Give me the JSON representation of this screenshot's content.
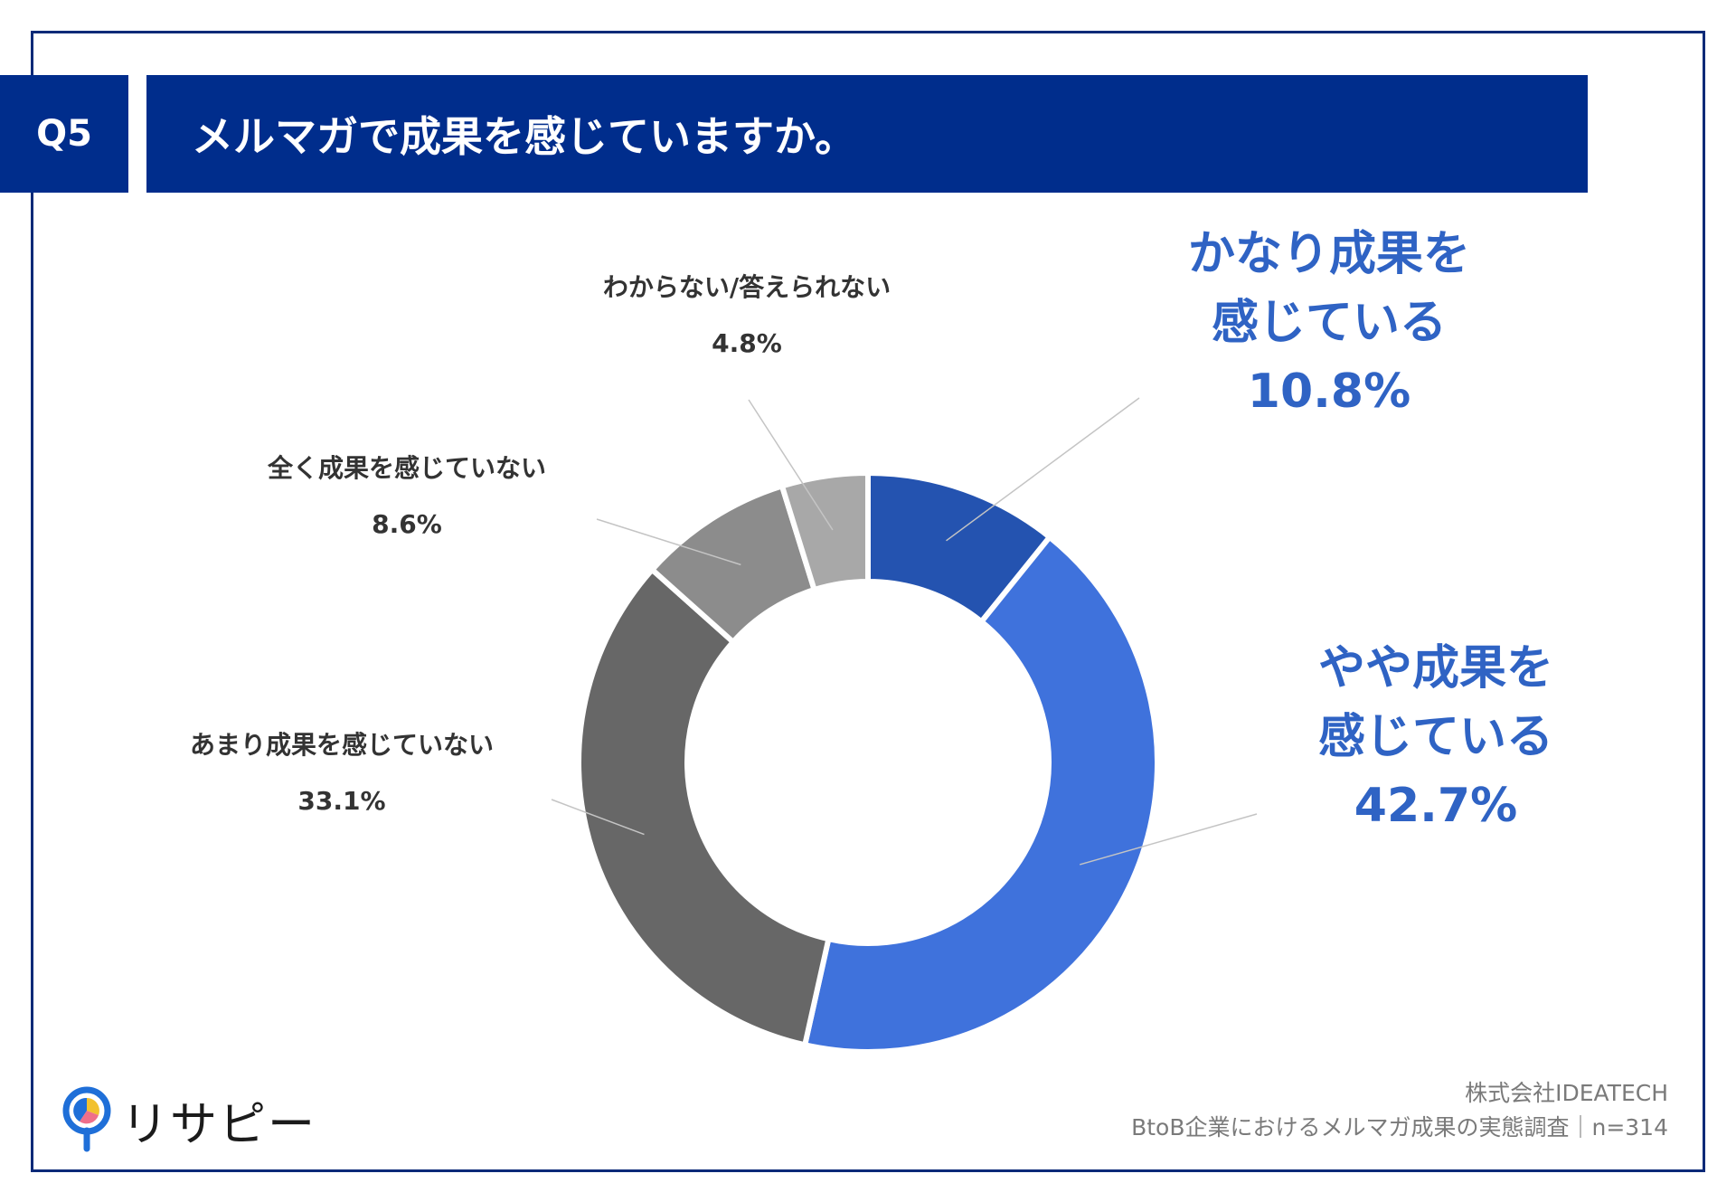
{
  "header": {
    "badge": "Q5",
    "question": "メルマガで成果を感じていますか。"
  },
  "chart_data": {
    "type": "donut",
    "title": "メルマガで成果を感じていますか。",
    "slices": [
      {
        "label_lines": [
          "かなり成果を",
          "感じている"
        ],
        "value": 10.8,
        "value_label": "10.8%",
        "color": "#2453b0",
        "label_color": "#2f63c4"
      },
      {
        "label_lines": [
          "やや成果を",
          "感じている"
        ],
        "value": 42.7,
        "value_label": "42.7%",
        "color": "#3f72dc",
        "label_color": "#2f63c4"
      },
      {
        "label_lines": [
          "あまり成果を感じていない"
        ],
        "value": 33.1,
        "value_label": "33.1%",
        "color": "#676767",
        "label_color": "#333333"
      },
      {
        "label_lines": [
          "全く成果を感じていない"
        ],
        "value": 8.6,
        "value_label": "8.6%",
        "color": "#8c8c8c",
        "label_color": "#333333"
      },
      {
        "label_lines": [
          "わからない/答えられない"
        ],
        "value": 4.8,
        "value_label": "4.8%",
        "color": "#a8a8a8",
        "label_color": "#333333"
      }
    ]
  },
  "footer": {
    "company": "株式会社IDEATECH",
    "survey": "BtoB企業におけるメルマガ成果の実態調査｜n=314"
  },
  "logo": {
    "text": "リサピー",
    "icon": "pin-pie-icon",
    "colors": {
      "blue": "#1f6fd8",
      "yellow": "#f2c12e",
      "pink": "#ef6f8a"
    }
  }
}
